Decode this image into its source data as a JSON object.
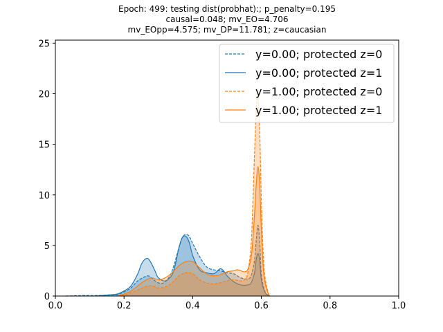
{
  "chart_data": {
    "type": "area",
    "title_lines": [
      "Epoch: 499: testing dist(probhat):; p_penalty=0.195",
      "causal=0.048; mv_EO=4.706",
      "mv_EOpp=4.575; mv_DP=11.781; z=caucasian"
    ],
    "xlabel": "",
    "ylabel": "",
    "xlim": [
      0.0,
      1.0
    ],
    "ylim": [
      0,
      25.3
    ],
    "x_ticks": [
      "0.0",
      "0.2",
      "0.4",
      "0.6",
      "0.8",
      "1.0"
    ],
    "x_tick_values": [
      0.0,
      0.2,
      0.4,
      0.6,
      0.8,
      1.0
    ],
    "y_ticks": [
      "0",
      "5",
      "10",
      "15",
      "20",
      "25"
    ],
    "y_tick_values": [
      0,
      5,
      10,
      15,
      20,
      25
    ],
    "grid": false,
    "legend_position": "top-right",
    "colors": {
      "blue": "#1f77b4",
      "orange": "#ff7f0e"
    },
    "series": [
      {
        "name": "y=0.00; protected z=0",
        "color": "#1f77b4",
        "line_style": "dashed",
        "x": [
          0.03,
          0.08,
          0.12,
          0.16,
          0.18,
          0.2,
          0.22,
          0.24,
          0.26,
          0.27,
          0.28,
          0.3,
          0.32,
          0.34,
          0.36,
          0.37,
          0.38,
          0.39,
          0.4,
          0.42,
          0.44,
          0.46,
          0.48,
          0.5,
          0.52,
          0.54,
          0.56,
          0.57,
          0.58,
          0.585,
          0.59,
          0.595,
          0.6,
          0.61,
          0.62,
          0.625
        ],
        "y": [
          0.0,
          0.05,
          0.05,
          0.1,
          0.15,
          0.4,
          0.8,
          1.5,
          1.9,
          2.0,
          1.8,
          1.3,
          1.4,
          2.5,
          4.8,
          5.8,
          6.1,
          5.9,
          5.2,
          3.9,
          2.9,
          2.6,
          2.5,
          2.3,
          2.2,
          1.8,
          1.7,
          2.0,
          3.5,
          5.5,
          7.0,
          5.5,
          2.2,
          0.5,
          0.05,
          0.0
        ]
      },
      {
        "name": "y=0.00; protected z=1",
        "color": "#1f77b4",
        "line_style": "solid",
        "x": [
          0.12,
          0.15,
          0.18,
          0.2,
          0.22,
          0.24,
          0.25,
          0.26,
          0.27,
          0.28,
          0.29,
          0.3,
          0.32,
          0.34,
          0.35,
          0.36,
          0.37,
          0.38,
          0.39,
          0.4,
          0.42,
          0.44,
          0.46,
          0.47,
          0.48,
          0.49,
          0.5,
          0.52,
          0.54,
          0.56,
          0.57,
          0.58,
          0.585,
          0.59,
          0.595,
          0.6,
          0.61,
          0.62,
          0.625
        ],
        "y": [
          0.0,
          0.1,
          0.2,
          0.5,
          1.0,
          2.2,
          3.1,
          3.6,
          3.7,
          3.2,
          2.5,
          1.8,
          1.5,
          2.1,
          3.2,
          4.8,
          5.8,
          5.9,
          5.3,
          4.0,
          2.6,
          2.3,
          2.2,
          2.4,
          2.7,
          2.5,
          2.0,
          1.4,
          1.1,
          1.1,
          1.3,
          2.3,
          3.6,
          4.2,
          3.5,
          1.6,
          0.4,
          0.05,
          0.0
        ]
      },
      {
        "name": "y=1.00; protected z=0",
        "color": "#ff7f0e",
        "line_style": "dashed",
        "x": [
          0.18,
          0.2,
          0.22,
          0.24,
          0.26,
          0.28,
          0.3,
          0.32,
          0.34,
          0.36,
          0.38,
          0.4,
          0.42,
          0.44,
          0.46,
          0.48,
          0.5,
          0.52,
          0.54,
          0.55,
          0.56,
          0.57,
          0.575,
          0.58,
          0.585,
          0.59,
          0.595,
          0.6,
          0.605,
          0.61,
          0.62,
          0.625
        ],
        "y": [
          0.0,
          0.1,
          0.3,
          0.6,
          0.9,
          1.0,
          0.8,
          0.9,
          1.3,
          2.0,
          2.3,
          2.2,
          1.6,
          1.3,
          1.2,
          1.3,
          1.5,
          1.6,
          1.5,
          1.6,
          2.2,
          5.0,
          9.0,
          14.0,
          18.5,
          19.8,
          16.5,
          9.5,
          4.5,
          2.0,
          0.3,
          0.0
        ]
      },
      {
        "name": "y=1.00; protected z=1",
        "color": "#ff7f0e",
        "line_style": "solid",
        "x": [
          0.18,
          0.2,
          0.22,
          0.24,
          0.26,
          0.28,
          0.3,
          0.32,
          0.34,
          0.36,
          0.38,
          0.4,
          0.42,
          0.44,
          0.46,
          0.48,
          0.5,
          0.52,
          0.53,
          0.54,
          0.55,
          0.56,
          0.57,
          0.575,
          0.58,
          0.585,
          0.59,
          0.595,
          0.6,
          0.605,
          0.61,
          0.62,
          0.625
        ],
        "y": [
          0.0,
          0.2,
          0.5,
          1.0,
          1.5,
          1.8,
          1.6,
          1.8,
          2.3,
          3.0,
          3.4,
          3.4,
          2.8,
          2.2,
          2.0,
          2.1,
          2.4,
          2.5,
          2.6,
          2.5,
          2.4,
          2.6,
          3.8,
          5.5,
          8.0,
          11.0,
          12.8,
          11.0,
          6.5,
          3.0,
          1.4,
          0.2,
          0.0
        ]
      }
    ]
  }
}
